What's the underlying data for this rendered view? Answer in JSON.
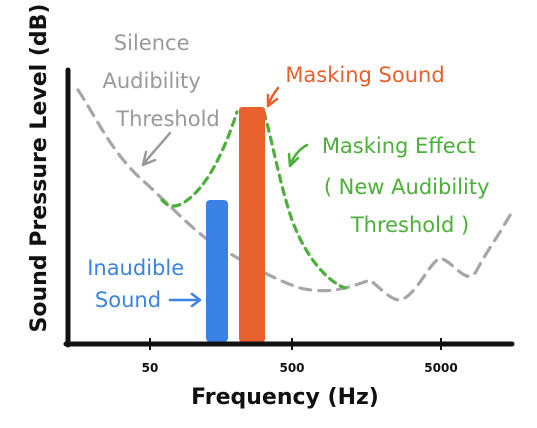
{
  "axes": {
    "x_title": "Frequency (Hz)",
    "y_title": "Sound Pressure Level (dB)",
    "x_ticks": [
      "50",
      "500",
      "5000"
    ]
  },
  "annotations": {
    "silence_threshold": [
      "Silence",
      "Audibility",
      "Threshold"
    ],
    "masking_sound": "Masking Sound",
    "masking_effect": [
      "Masking Effect",
      "( New Audibility",
      "Threshold )"
    ],
    "inaudible_sound": [
      "Inaudible",
      "Sound"
    ]
  },
  "colors": {
    "masking": "#e8602c",
    "inaudible": "#3b82e6",
    "effect": "#4caf3a",
    "threshold": "#a6a6a6",
    "annotation_gray": "#999999",
    "axis": "#111111"
  }
}
